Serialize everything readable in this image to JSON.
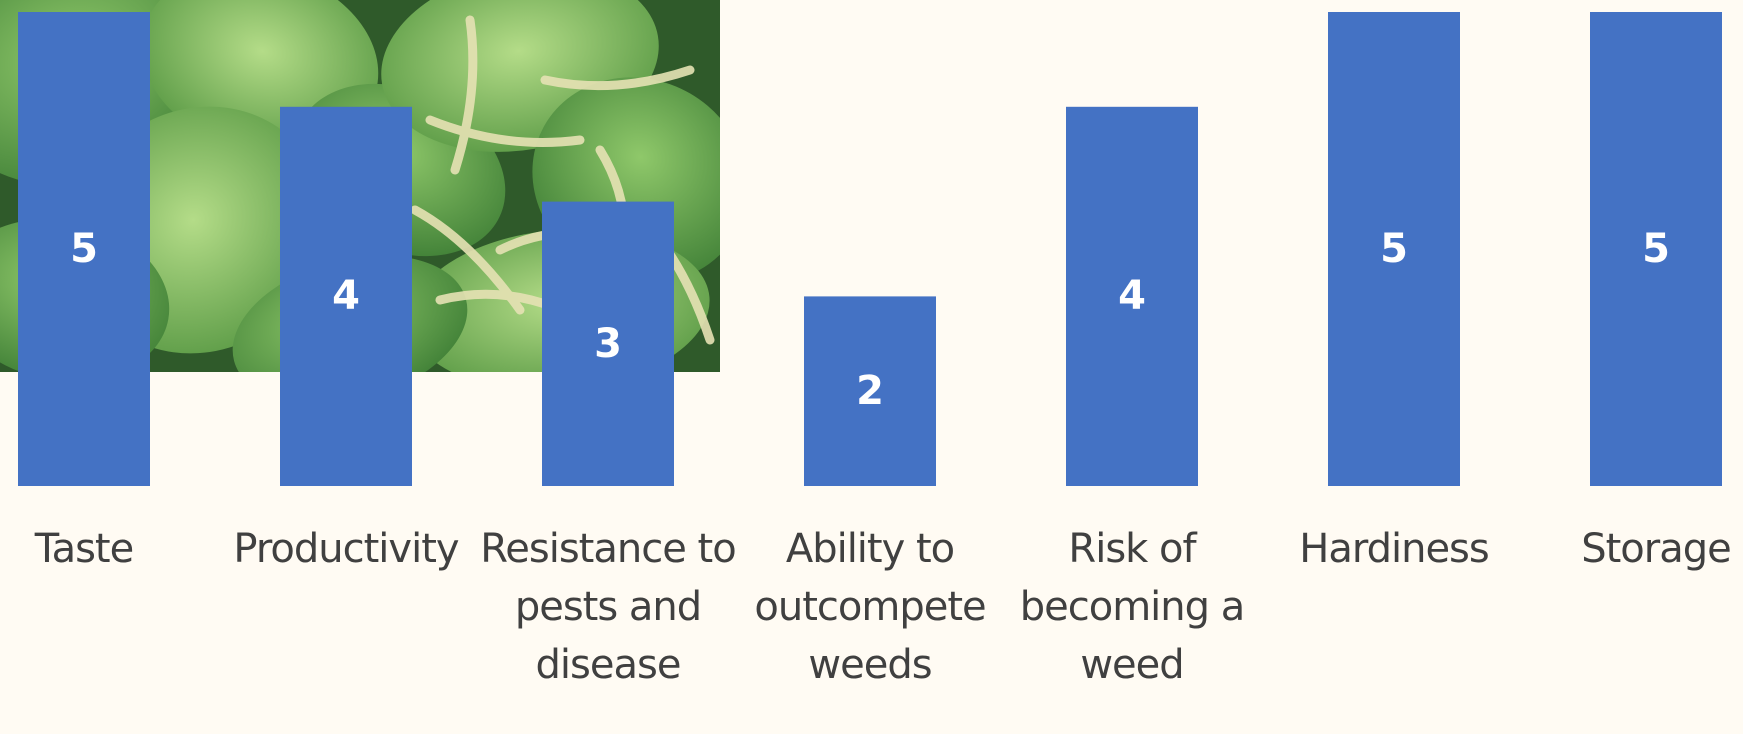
{
  "chart_data": {
    "type": "bar",
    "categories": [
      "Taste",
      "Productivity",
      "Resistance to pests and disease",
      "Ability to outcompete weeds",
      "Risk of becoming a weed",
      "Hardiness",
      "Storage"
    ],
    "category_lines": [
      [
        "Taste"
      ],
      [
        "Productivity"
      ],
      [
        "Resistance to",
        "pests and",
        "disease"
      ],
      [
        "Ability to",
        "outcompete",
        "weeds"
      ],
      [
        "Risk of",
        "becoming a",
        "weed"
      ],
      [
        "Hardiness"
      ],
      [
        "Storage"
      ]
    ],
    "values": [
      5,
      4,
      3,
      2,
      4,
      5,
      5
    ],
    "ylim": [
      0,
      5
    ],
    "title": "",
    "xlabel": "",
    "ylabel": "",
    "grid": false,
    "legend": "none",
    "data_labels": true,
    "bar_color": "#4472c4",
    "label_color": "#ffffff",
    "category_label_color": "#404040",
    "background_color": "#fffbf3",
    "background_image": "green leafy plant with seed spikes behind the left bars"
  }
}
